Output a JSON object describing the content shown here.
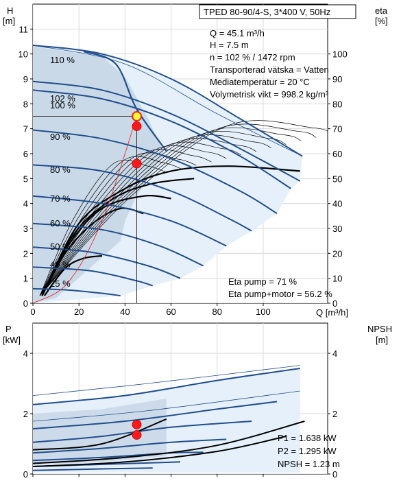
{
  "title_box": "TPED 80-90/4-S, 3*400 V, 50Hz",
  "info": {
    "q": "Q = 45.1 m³/h",
    "h": "H = 7.5 m",
    "n": "n = 102 % / 1472 rpm",
    "liquid": "Transporterad vätska = Vatten",
    "temp": "Mediatemperatur = 20 °C",
    "density": "Volymetrisk vikt = 998.2 kg/m³",
    "eta_pump": "Eta pump = 71 %",
    "eta_pump_motor": "Eta pump+motor = 56.2 %",
    "p1": "P1 = 1.638 kW",
    "p2": "P2 = 1.295 kW",
    "npsh": "NPSH = 1.23 m"
  },
  "axes": {
    "top_left_label": "H",
    "top_left_unit": "[m]",
    "top_right_label": "eta",
    "top_right_unit": "[%]",
    "x_label": "Q [m³/h]",
    "bottom_left_label": "P",
    "bottom_left_unit": "[kW]",
    "bottom_right_label": "NPSH",
    "bottom_right_unit": "[m]"
  },
  "colors": {
    "curve_blue": "#1f4e8c",
    "envelope_fill": "#e6f0fa",
    "envelope_dark": "#c7d6e6",
    "operating_point": "#ff1a1a",
    "highlight_point": "#ffff33",
    "system_curve": "#e03030"
  },
  "chart_data": [
    {
      "type": "line",
      "name": "head",
      "x_range": [
        0,
        128
      ],
      "y_range": [
        0,
        12
      ],
      "y2_range": [
        0,
        120
      ],
      "x_ticks": [
        0,
        20,
        40,
        60,
        80,
        100
      ],
      "y_ticks": [
        0,
        1,
        2,
        3,
        4,
        5,
        6,
        7,
        8,
        9,
        10,
        11
      ],
      "y2_ticks": [
        0,
        10,
        20,
        30,
        40,
        50,
        60,
        70,
        80,
        90,
        100
      ],
      "grid": true,
      "speed_curves": [
        {
          "label": "110 %",
          "points": [
            [
              0,
              10.35
            ],
            [
              30,
              10.0
            ],
            [
              60,
              9.0
            ],
            [
              90,
              7.4
            ],
            [
              117,
              5.9
            ]
          ]
        },
        {
          "label": "102 %",
          "points": [
            [
              0,
              8.9
            ],
            [
              30,
              8.55
            ],
            [
              60,
              7.6
            ],
            [
              90,
              6.2
            ],
            [
              116,
              4.9
            ]
          ]
        },
        {
          "label": "100 %",
          "points": [
            [
              0,
              8.55
            ],
            [
              30,
              8.2
            ],
            [
              60,
              7.3
            ],
            [
              90,
              5.9
            ],
            [
              112,
              4.6
            ]
          ]
        },
        {
          "label": "90 %",
          "points": [
            [
              0,
              6.95
            ],
            [
              30,
              6.6
            ],
            [
              60,
              5.8
            ],
            [
              90,
              4.5
            ],
            [
              106,
              3.6
            ]
          ]
        },
        {
          "label": "80 %",
          "points": [
            [
              0,
              5.55
            ],
            [
              30,
              5.3
            ],
            [
              60,
              4.5
            ],
            [
              85,
              3.4
            ],
            [
              95,
              2.9
            ]
          ]
        },
        {
          "label": "70 %",
          "points": [
            [
              0,
              4.3
            ],
            [
              30,
              4.0
            ],
            [
              60,
              3.3
            ],
            [
              84,
              2.3
            ]
          ]
        },
        {
          "label": "60 %",
          "points": [
            [
              0,
              3.2
            ],
            [
              30,
              2.95
            ],
            [
              55,
              2.3
            ],
            [
              74,
              1.5
            ]
          ]
        },
        {
          "label": "50 %",
          "points": [
            [
              0,
              2.25
            ],
            [
              25,
              2.05
            ],
            [
              50,
              1.5
            ],
            [
              64,
              1.0
            ]
          ]
        },
        {
          "label": "40 %",
          "points": [
            [
              0,
              1.45
            ],
            [
              25,
              1.3
            ],
            [
              45,
              0.9
            ],
            [
              52,
              0.7
            ]
          ]
        },
        {
          "label": "25 %",
          "points": [
            [
              0,
              0.58
            ],
            [
              15,
              0.53
            ],
            [
              30,
              0.4
            ],
            [
              38,
              0.3
            ]
          ]
        }
      ],
      "operating_point": {
        "q": 45.1,
        "h": 7.5
      },
      "marker_points": [
        {
          "q": 45.1,
          "h": 7.1
        },
        {
          "q": 45.1,
          "h": 5.6
        }
      ],
      "system_curve": [
        [
          0,
          0
        ],
        [
          15,
          0.8
        ],
        [
          30,
          3.3
        ],
        [
          45.1,
          7.5
        ]
      ]
    },
    {
      "type": "line",
      "name": "power",
      "x_range": [
        0,
        128
      ],
      "y_range": [
        0,
        5
      ],
      "y_ticks": [
        0,
        2,
        4
      ],
      "y2_ticks": [
        0,
        2,
        4
      ],
      "power_curves": [
        {
          "points": [
            [
              0,
              2.3
            ],
            [
              40,
              2.6
            ],
            [
              80,
              3.1
            ],
            [
              116,
              3.5
            ]
          ]
        },
        {
          "points": [
            [
              0,
              1.5
            ],
            [
              40,
              1.75
            ],
            [
              80,
              2.15
            ],
            [
              106,
              2.4
            ]
          ]
        },
        {
          "points": [
            [
              0,
              1.05
            ],
            [
              30,
              1.25
            ],
            [
              60,
              1.55
            ],
            [
              95,
              1.75
            ]
          ]
        },
        {
          "points": [
            [
              0,
              0.7
            ],
            [
              30,
              0.85
            ],
            [
              60,
              1.05
            ],
            [
              84,
              1.15
            ]
          ]
        },
        {
          "points": [
            [
              0,
              0.45
            ],
            [
              30,
              0.55
            ],
            [
              60,
              0.7
            ],
            [
              74,
              0.72
            ]
          ]
        },
        {
          "points": [
            [
              0,
              0.25
            ],
            [
              30,
              0.32
            ],
            [
              64,
              0.4
            ]
          ]
        },
        {
          "points": [
            [
              0,
              0.12
            ],
            [
              30,
              0.17
            ],
            [
              52,
              0.2
            ]
          ]
        }
      ],
      "npsh_curves": [
        {
          "points": [
            [
              0,
              0.8
            ],
            [
              30,
              1.0
            ],
            [
              58,
              1.82
            ]
          ]
        },
        {
          "points": [
            [
              0,
              0.35
            ],
            [
              40,
              0.55
            ],
            [
              80,
              0.95
            ],
            [
              118,
              1.75
            ]
          ]
        },
        {
          "points": [
            [
              0,
              0.25
            ],
            [
              40,
              0.4
            ],
            [
              80,
              0.75
            ],
            [
              110,
              1.25
            ]
          ]
        }
      ],
      "operating_points": [
        {
          "q": 45.1,
          "p": 1.638
        },
        {
          "q": 45.1,
          "p": 1.295
        }
      ]
    }
  ]
}
